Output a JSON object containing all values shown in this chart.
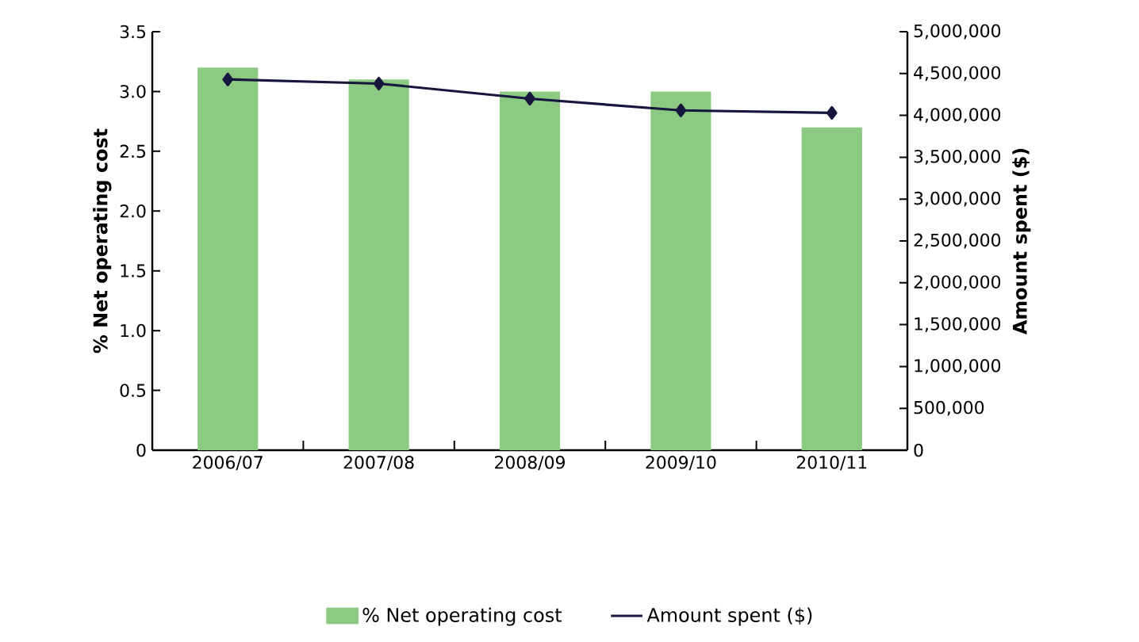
{
  "chart_data": {
    "type": "bar",
    "categories": [
      "2006/07",
      "2007/08",
      "2008/09",
      "2009/10",
      "2010/11"
    ],
    "series": [
      {
        "name": "% Net operating cost",
        "color": "#8cc982",
        "values": [
          3.2,
          3.1,
          3.0,
          3.0,
          2.7
        ]
      },
      {
        "name": "Amount spent ($)",
        "type": "line",
        "axis": "y2",
        "color": "#16163f",
        "marker": "diamond",
        "values": [
          4430000,
          4380000,
          4200000,
          4060000,
          4030000
        ]
      }
    ],
    "ylabel": "% Net operating cost",
    "y2label": "Amount spent ($)",
    "ylim": [
      0,
      3.5
    ],
    "yticks": [
      0,
      0.5,
      {
        "value": 1,
        "label": "1.0"
      },
      1.5,
      {
        "value": 2,
        "label": "2.0"
      },
      2.5,
      {
        "value": 3,
        "label": "3.0"
      },
      3.5
    ],
    "y2lim": [
      0,
      5000000
    ],
    "y2ticks": [
      0,
      {
        "value": 500000,
        "label": "500,000"
      },
      {
        "value": 1000000,
        "label": "1,000,000"
      },
      {
        "value": 1500000,
        "label": "1,500,000"
      },
      {
        "value": 2000000,
        "label": "2,000,000"
      },
      {
        "value": 2500000,
        "label": "2,500,000"
      },
      {
        "value": 3000000,
        "label": "3,000,000"
      },
      {
        "value": 3500000,
        "label": "3,500,000"
      },
      {
        "value": 4000000,
        "label": "4,000,000"
      },
      {
        "value": 4500000,
        "label": "4,500,000"
      },
      {
        "value": 5000000,
        "label": "5,000,000"
      }
    ],
    "legend": "bottom",
    "grid": false
  }
}
